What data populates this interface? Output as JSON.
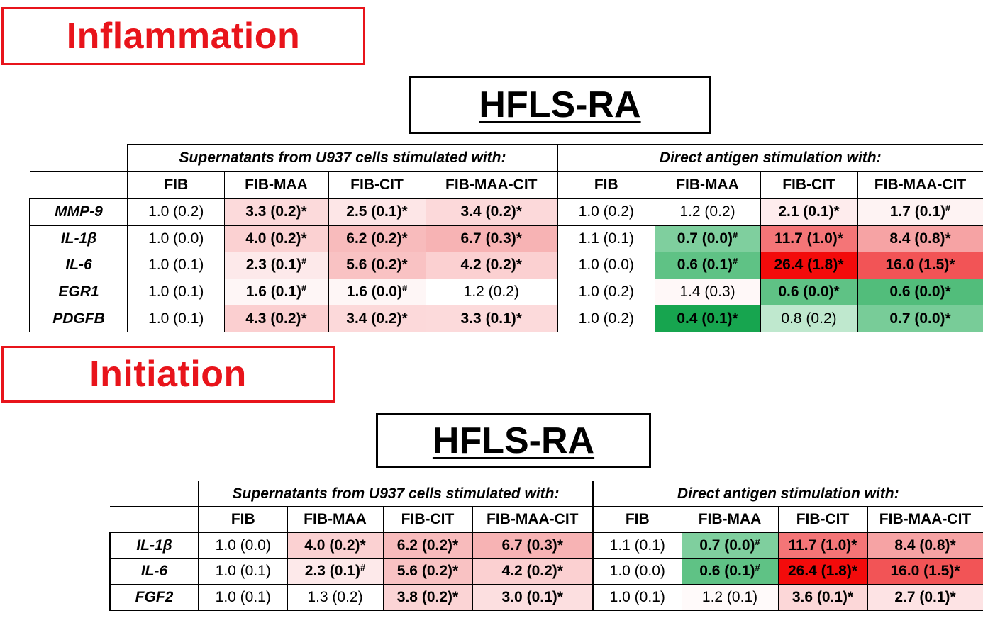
{
  "sections": [
    {
      "title": "Inflammation",
      "subtitle": "HFLS-RA"
    },
    {
      "title": "Initiation",
      "subtitle": "HFLS-RA"
    }
  ],
  "group_headers": [
    "Supernatants from U937 cells stimulated with:",
    "Direct antigen stimulation with:"
  ],
  "columns": [
    "FIB",
    "FIB-MAA",
    "FIB-CIT",
    "FIB-MAA-CIT",
    "FIB",
    "FIB-MAA",
    "FIB-CIT",
    "FIB-MAA-CIT"
  ],
  "colors": {
    "section_red": "#e8141b",
    "up_red": "#ff0000",
    "down_green": "#00a84f"
  },
  "tables": [
    {
      "rows": [
        {
          "gene": "MMP-9",
          "cells": [
            {
              "v": "1.0 (0.2)",
              "m": "",
              "b": false,
              "bg": "#ffffff"
            },
            {
              "v": "3.3 (0.2)",
              "m": "*",
              "b": true,
              "bg": "#fcdadb"
            },
            {
              "v": "2.5 (0.1)",
              "m": "*",
              "b": true,
              "bg": "#fde6e7"
            },
            {
              "v": "3.4 (0.2)",
              "m": "*",
              "b": true,
              "bg": "#fcd9da"
            },
            {
              "v": "1.0 (0.2)",
              "m": "",
              "b": false,
              "bg": "#ffffff"
            },
            {
              "v": "1.2 (0.2)",
              "m": "",
              "b": false,
              "bg": "#ffffff"
            },
            {
              "v": "2.1 (0.1)",
              "m": "*",
              "b": true,
              "bg": "#feeced"
            },
            {
              "v": "1.7 (0.1)",
              "m": "#",
              "b": true,
              "bg": "#fef3f3"
            }
          ]
        },
        {
          "gene": "IL-1β",
          "cells": [
            {
              "v": "1.0 (0.0)",
              "m": "",
              "b": false,
              "bg": "#ffffff"
            },
            {
              "v": "4.0 (0.2)",
              "m": "*",
              "b": true,
              "bg": "#fbd1d2"
            },
            {
              "v": "6.2 (0.2)",
              "m": "*",
              "b": true,
              "bg": "#f8bbbc"
            },
            {
              "v": "6.7 (0.3)",
              "m": "*",
              "b": true,
              "bg": "#f7b3b4"
            },
            {
              "v": "1.1 (0.1)",
              "m": "",
              "b": false,
              "bg": "#ffffff"
            },
            {
              "v": "0.7 (0.0)",
              "m": "#",
              "b": true,
              "bg": "#7fcf9e"
            },
            {
              "v": "11.7 (1.0)",
              "m": "*",
              "b": true,
              "bg": "#f47577"
            },
            {
              "v": "8.4 (0.8)",
              "m": "*",
              "b": true,
              "bg": "#f6a3a4"
            }
          ]
        },
        {
          "gene": "IL-6",
          "cells": [
            {
              "v": "1.0 (0.1)",
              "m": "",
              "b": false,
              "bg": "#ffffff"
            },
            {
              "v": "2.3 (0.1)",
              "m": "#",
              "b": true,
              "bg": "#fde9ea"
            },
            {
              "v": "5.6 (0.2)",
              "m": "*",
              "b": true,
              "bg": "#f9c2c3"
            },
            {
              "v": "4.2 (0.2)",
              "m": "*",
              "b": true,
              "bg": "#fbd0d1"
            },
            {
              "v": "1.0 (0.0)",
              "m": "",
              "b": false,
              "bg": "#ffffff"
            },
            {
              "v": "0.6 (0.1)",
              "m": "#",
              "b": true,
              "bg": "#5fc285"
            },
            {
              "v": "26.4 (1.8)",
              "m": "*",
              "b": true,
              "bg": "#f30b0b"
            },
            {
              "v": "16.0 (1.5)",
              "m": "*",
              "b": true,
              "bg": "#f25456"
            }
          ]
        },
        {
          "gene": "EGR1",
          "cells": [
            {
              "v": "1.0 (0.1)",
              "m": "",
              "b": false,
              "bg": "#ffffff"
            },
            {
              "v": "1.6 (0.1)",
              "m": "#",
              "b": true,
              "bg": "#fef6f6"
            },
            {
              "v": "1.6 (0.0)",
              "m": "#",
              "b": true,
              "bg": "#fef6f6"
            },
            {
              "v": "1.2 (0.2)",
              "m": "",
              "b": false,
              "bg": "#ffffff"
            },
            {
              "v": "1.0 (0.2)",
              "m": "",
              "b": false,
              "bg": "#ffffff"
            },
            {
              "v": "1.4 (0.3)",
              "m": "",
              "b": false,
              "bg": "#fff8f8"
            },
            {
              "v": "0.6 (0.0)",
              "m": "*",
              "b": true,
              "bg": "#5fc285"
            },
            {
              "v": "0.6 (0.0)",
              "m": "*",
              "b": true,
              "bg": "#52bd7b"
            }
          ]
        },
        {
          "gene": "PDGFB",
          "cells": [
            {
              "v": "1.0 (0.1)",
              "m": "",
              "b": false,
              "bg": "#ffffff"
            },
            {
              "v": "4.3 (0.2)",
              "m": "*",
              "b": true,
              "bg": "#fbcfd0"
            },
            {
              "v": "3.4 (0.2)",
              "m": "*",
              "b": true,
              "bg": "#fcd9da"
            },
            {
              "v": "3.3 (0.1)",
              "m": "*",
              "b": true,
              "bg": "#fcdadb"
            },
            {
              "v": "1.0 (0.2)",
              "m": "",
              "b": false,
              "bg": "#ffffff"
            },
            {
              "v": "0.4 (0.1)",
              "m": "*",
              "b": true,
              "bg": "#17a54f"
            },
            {
              "v": "0.8 (0.2)",
              "m": "",
              "b": false,
              "bg": "#bfe8ce"
            },
            {
              "v": "0.7 (0.0)",
              "m": "*",
              "b": true,
              "bg": "#78cc98"
            }
          ]
        }
      ]
    },
    {
      "rows": [
        {
          "gene": "IL-1β",
          "cells": [
            {
              "v": "1.0 (0.0)",
              "m": "",
              "b": false,
              "bg": "#ffffff"
            },
            {
              "v": "4.0 (0.2)",
              "m": "*",
              "b": true,
              "bg": "#fbd1d2"
            },
            {
              "v": "6.2 (0.2)",
              "m": "*",
              "b": true,
              "bg": "#f8bbbc"
            },
            {
              "v": "6.7 (0.3)",
              "m": "*",
              "b": true,
              "bg": "#f7b3b4"
            },
            {
              "v": "1.1 (0.1)",
              "m": "",
              "b": false,
              "bg": "#ffffff"
            },
            {
              "v": "0.7 (0.0)",
              "m": "#",
              "b": true,
              "bg": "#7fcf9e"
            },
            {
              "v": "11.7 (1.0)",
              "m": "*",
              "b": true,
              "bg": "#f47577"
            },
            {
              "v": "8.4 (0.8)",
              "m": "*",
              "b": true,
              "bg": "#f6a3a4"
            }
          ]
        },
        {
          "gene": "IL-6",
          "cells": [
            {
              "v": "1.0 (0.1)",
              "m": "",
              "b": false,
              "bg": "#ffffff"
            },
            {
              "v": "2.3 (0.1)",
              "m": "#",
              "b": true,
              "bg": "#fde9ea"
            },
            {
              "v": "5.6 (0.2)",
              "m": "*",
              "b": true,
              "bg": "#f9c2c3"
            },
            {
              "v": "4.2 (0.2)",
              "m": "*",
              "b": true,
              "bg": "#fbd0d1"
            },
            {
              "v": "1.0 (0.0)",
              "m": "",
              "b": false,
              "bg": "#ffffff"
            },
            {
              "v": "0.6 (0.1)",
              "m": "#",
              "b": true,
              "bg": "#5fc285"
            },
            {
              "v": "26.4 (1.8)",
              "m": "*",
              "b": true,
              "bg": "#f30b0b"
            },
            {
              "v": "16.0 (1.5)",
              "m": "*",
              "b": true,
              "bg": "#f25456"
            }
          ]
        },
        {
          "gene": "FGF2",
          "cells": [
            {
              "v": "1.0 (0.1)",
              "m": "",
              "b": false,
              "bg": "#ffffff"
            },
            {
              "v": "1.3 (0.2)",
              "m": "",
              "b": false,
              "bg": "#ffffff"
            },
            {
              "v": "3.8 (0.2)",
              "m": "*",
              "b": true,
              "bg": "#fbd4d5"
            },
            {
              "v": "3.0 (0.1)",
              "m": "*",
              "b": true,
              "bg": "#fcdfe0"
            },
            {
              "v": "1.0 (0.1)",
              "m": "",
              "b": false,
              "bg": "#ffffff"
            },
            {
              "v": "1.2 (0.1)",
              "m": "",
              "b": false,
              "bg": "#fffafa"
            },
            {
              "v": "3.6 (0.1)",
              "m": "*",
              "b": true,
              "bg": "#fcd7d8"
            },
            {
              "v": "2.7 (0.1)",
              "m": "*",
              "b": true,
              "bg": "#fde3e4"
            }
          ]
        }
      ]
    }
  ]
}
